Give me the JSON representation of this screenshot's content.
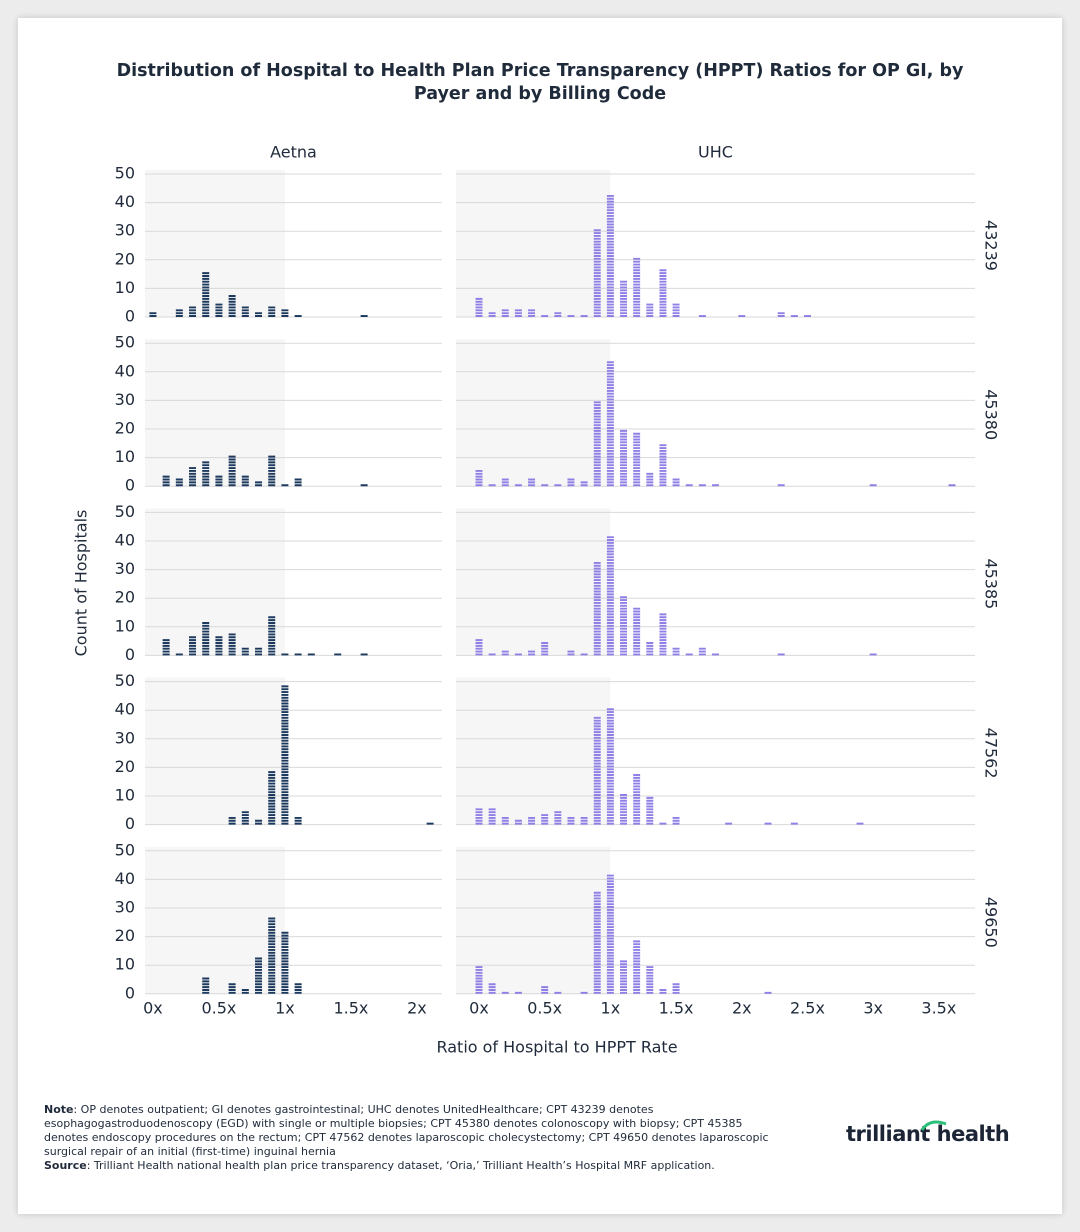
{
  "chart_data": {
    "type": "histogram",
    "title": "Distribution of Hospital to Health Plan Price Transparency (HPPT) Ratios for OP GI, by",
    "title_line2": "Payer and by Billing Code",
    "x_label": "Ratio of Hospital to HPPT Rate",
    "y_label": "Count of Hospitals",
    "ylim": [
      0,
      50
    ],
    "yticks": [
      0,
      10,
      20,
      30,
      40,
      50
    ],
    "grid": true,
    "shade_to": 1,
    "row_labels": [
      "43239",
      "45380",
      "45385",
      "47562",
      "49650"
    ],
    "columns": [
      {
        "name": "Aetna",
        "color": "#1d3a5e",
        "xlim": [
          -0.06,
          2.19
        ],
        "xticks": [
          {
            "value": 0,
            "label": "0x"
          },
          {
            "value": 0.5,
            "label": "0.5x"
          },
          {
            "value": 1,
            "label": "1x"
          },
          {
            "value": 1.5,
            "label": "1.5x"
          },
          {
            "value": 2,
            "label": "2x"
          }
        ],
        "rows": [
          {
            "x": [
              0,
              0.2,
              0.3,
              0.4,
              0.5,
              0.6,
              0.7,
              0.8,
              0.9,
              1.0,
              1.1,
              1.6
            ],
            "values": [
              2,
              3,
              4,
              16,
              5,
              8,
              4,
              2,
              4,
              3,
              1,
              1
            ]
          },
          {
            "x": [
              0.1,
              0.2,
              0.3,
              0.4,
              0.5,
              0.6,
              0.7,
              0.8,
              0.9,
              1.0,
              1.1,
              1.6
            ],
            "values": [
              4,
              3,
              7,
              9,
              4,
              11,
              4,
              2,
              11,
              1,
              3,
              1
            ]
          },
          {
            "x": [
              0.1,
              0.2,
              0.3,
              0.4,
              0.5,
              0.6,
              0.7,
              0.8,
              0.9,
              1.0,
              1.1,
              1.2,
              1.4,
              1.6
            ],
            "values": [
              6,
              1,
              7,
              12,
              7,
              8,
              3,
              3,
              14,
              1,
              1,
              1,
              1,
              1
            ]
          },
          {
            "x": [
              0.6,
              0.7,
              0.8,
              0.9,
              1.0,
              1.1,
              2.1
            ],
            "values": [
              3,
              5,
              2,
              19,
              49,
              3,
              1
            ]
          },
          {
            "x": [
              0.4,
              0.6,
              0.7,
              0.8,
              0.9,
              1.0,
              1.1
            ],
            "values": [
              6,
              4,
              2,
              13,
              27,
              22,
              4
            ]
          }
        ]
      },
      {
        "name": "UHC",
        "color": "#8f80e6",
        "xlim": [
          -0.175,
          3.775
        ],
        "xticks": [
          {
            "value": 0,
            "label": "0x"
          },
          {
            "value": 0.5,
            "label": "0.5x"
          },
          {
            "value": 1,
            "label": "1x"
          },
          {
            "value": 1.5,
            "label": "1.5x"
          },
          {
            "value": 2,
            "label": "2x"
          },
          {
            "value": 2.5,
            "label": "2.5x"
          },
          {
            "value": 3,
            "label": "3x"
          },
          {
            "value": 3.5,
            "label": "3.5x"
          }
        ],
        "rows": [
          {
            "x": [
              0,
              0.1,
              0.2,
              0.3,
              0.4,
              0.5,
              0.6,
              0.7,
              0.8,
              0.9,
              1.0,
              1.1,
              1.2,
              1.3,
              1.4,
              1.5,
              1.7,
              2.0,
              2.3,
              2.4,
              2.5
            ],
            "values": [
              7,
              2,
              3,
              3,
              3,
              1,
              2,
              1,
              1,
              31,
              43,
              13,
              21,
              5,
              17,
              5,
              1,
              1,
              2,
              1,
              1
            ]
          },
          {
            "x": [
              0,
              0.1,
              0.2,
              0.3,
              0.4,
              0.5,
              0.6,
              0.7,
              0.8,
              0.9,
              1.0,
              1.1,
              1.2,
              1.3,
              1.4,
              1.5,
              1.6,
              1.7,
              1.8,
              2.3,
              3.0,
              3.6
            ],
            "values": [
              6,
              1,
              3,
              1,
              3,
              1,
              1,
              3,
              2,
              30,
              44,
              20,
              19,
              5,
              15,
              3,
              1,
              1,
              1,
              1,
              1,
              1
            ]
          },
          {
            "x": [
              0,
              0.1,
              0.2,
              0.3,
              0.4,
              0.5,
              0.7,
              0.8,
              0.9,
              1.0,
              1.1,
              1.2,
              1.3,
              1.4,
              1.5,
              1.6,
              1.7,
              1.8,
              2.3,
              3.0
            ],
            "values": [
              6,
              1,
              2,
              1,
              2,
              5,
              2,
              1,
              33,
              42,
              21,
              17,
              5,
              15,
              3,
              1,
              3,
              1,
              1,
              1
            ]
          },
          {
            "x": [
              0,
              0.1,
              0.2,
              0.3,
              0.4,
              0.5,
              0.6,
              0.7,
              0.8,
              0.9,
              1.0,
              1.1,
              1.2,
              1.3,
              1.4,
              1.5,
              1.9,
              2.2,
              2.4,
              2.9
            ],
            "values": [
              6,
              6,
              3,
              2,
              3,
              4,
              5,
              3,
              3,
              38,
              41,
              11,
              18,
              10,
              1,
              3,
              1,
              1,
              1,
              1
            ]
          },
          {
            "x": [
              0,
              0.1,
              0.2,
              0.3,
              0.5,
              0.6,
              0.8,
              0.9,
              1.0,
              1.1,
              1.2,
              1.3,
              1.4,
              1.5,
              2.2
            ],
            "values": [
              10,
              4,
              1,
              1,
              3,
              1,
              1,
              36,
              42,
              12,
              19,
              10,
              2,
              4,
              1
            ]
          }
        ]
      }
    ]
  },
  "notes": {
    "note_label": "Note",
    "note_text": ": OP denotes outpatient; GI denotes gastrointestinal; UHC denotes UnitedHealthcare; CPT 43239 denotes esophagogastroduodenoscopy (EGD) with single or multiple biopsies; CPT 45380 denotes colonoscopy with biopsy; CPT 45385 denotes endoscopy procedures on the rectum; CPT 47562 denotes laparoscopic cholecystectomy; CPT 49650 denotes laparoscopic surgical repair of an initial (first-time) inguinal hernia",
    "source_label": "Source",
    "source_text": ": Trilliant Health national health plan price transparency dataset, ‘Oria,’ Trilliant Health’s Hospital MRF application."
  },
  "logo": "trilliant health"
}
